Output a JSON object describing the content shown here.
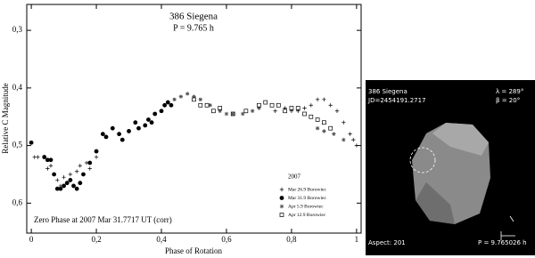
{
  "chart_data": {
    "type": "scatter",
    "title": "386 Siegena",
    "subtitle": "P = 9.765 h",
    "xlabel": "Phase of Rotation",
    "ylabel": "Relative C Magnitude",
    "annotation": "Zero Phase at 2007 Mar 31.7717 UT (corr)",
    "legend_title": "2007",
    "legend": "lower-right",
    "xlim": [
      -0.014,
      1.014
    ],
    "ylim": [
      0.255,
      0.652
    ],
    "y_inverted": true,
    "xticks": [
      0,
      {
        "value": 0.2,
        "label": "0,2"
      },
      {
        "value": 0.4,
        "label": "0,4"
      },
      {
        "value": 0.6,
        "label": "0,6"
      },
      {
        "value": 0.8,
        "label": "0,8"
      },
      1
    ],
    "yticks": [
      {
        "value": 0.3,
        "label": "0,3"
      },
      {
        "value": 0.4,
        "label": "0,4"
      },
      {
        "value": 0.5,
        "label": "0,5"
      },
      {
        "value": 0.6,
        "label": "0,6"
      }
    ],
    "series": [
      {
        "name": "Mar 26.9 Borowiec",
        "color": "#000000",
        "marker": "plus",
        "x": [
          0.01,
          0.02,
          0.05,
          0.06,
          0.08,
          0.09,
          0.1,
          0.12,
          0.14,
          0.15,
          0.17,
          0.18,
          0.2,
          0.75,
          0.78,
          0.8,
          0.82,
          0.84,
          0.86,
          0.88,
          0.9,
          0.92,
          0.94,
          0.96,
          0.98,
          0.99,
          1.0
        ],
        "y": [
          0.52,
          0.52,
          0.54,
          0.535,
          0.56,
          0.57,
          0.555,
          0.55,
          0.545,
          0.535,
          0.53,
          0.54,
          0.52,
          0.44,
          0.435,
          0.44,
          0.44,
          0.435,
          0.43,
          0.42,
          0.42,
          0.43,
          0.44,
          0.46,
          0.48,
          0.49,
          0.5
        ]
      },
      {
        "name": "Mar 31.9 Borowiec",
        "color": "#000000",
        "marker": "circle",
        "x": [
          0.0,
          0.04,
          0.05,
          0.06,
          0.07,
          0.08,
          0.09,
          0.1,
          0.11,
          0.12,
          0.13,
          0.14,
          0.15,
          0.16,
          0.18,
          0.2,
          0.22,
          0.23,
          0.25,
          0.27,
          0.28,
          0.3,
          0.32,
          0.33,
          0.35,
          0.36,
          0.37,
          0.38,
          0.4,
          0.41,
          0.42,
          0.43
        ],
        "y": [
          0.495,
          0.52,
          0.525,
          0.525,
          0.55,
          0.575,
          0.575,
          0.57,
          0.565,
          0.56,
          0.57,
          0.575,
          0.565,
          0.55,
          0.53,
          0.51,
          0.48,
          0.485,
          0.47,
          0.48,
          0.49,
          0.475,
          0.46,
          0.47,
          0.465,
          0.455,
          0.46,
          0.445,
          0.44,
          0.43,
          0.425,
          0.43
        ]
      },
      {
        "name": "Apr 5.9 Borowiec",
        "color": "#555555",
        "marker": "star",
        "x": [
          0.44,
          0.46,
          0.48,
          0.5,
          0.52,
          0.55,
          0.58,
          0.6,
          0.62,
          0.65,
          0.68,
          0.7,
          0.88,
          0.9,
          0.93,
          0.96
        ],
        "y": [
          0.42,
          0.415,
          0.41,
          0.415,
          0.42,
          0.43,
          0.44,
          0.445,
          0.445,
          0.445,
          0.44,
          0.435,
          0.47,
          0.475,
          0.48,
          0.49
        ]
      },
      {
        "name": "Apr 12.9 Borowiec",
        "color": "#000000",
        "marker": "square",
        "x": [
          0.5,
          0.52,
          0.54,
          0.56,
          0.58,
          0.62,
          0.66,
          0.7,
          0.72,
          0.74,
          0.76,
          0.78,
          0.8,
          0.82,
          0.84,
          0.86,
          0.88,
          0.9,
          0.92
        ],
        "y": [
          0.42,
          0.43,
          0.43,
          0.44,
          0.435,
          0.445,
          0.44,
          0.43,
          0.425,
          0.43,
          0.43,
          0.44,
          0.435,
          0.435,
          0.445,
          0.45,
          0.455,
          0.46,
          0.47
        ]
      }
    ]
  },
  "inset": {
    "title": "386 Siegena",
    "jd": "JD=2454191.2717",
    "lambda": "λ = 289°",
    "beta": "β = 20°",
    "aspect": "Aspect: 201",
    "period": "P = 9.765026 h"
  }
}
